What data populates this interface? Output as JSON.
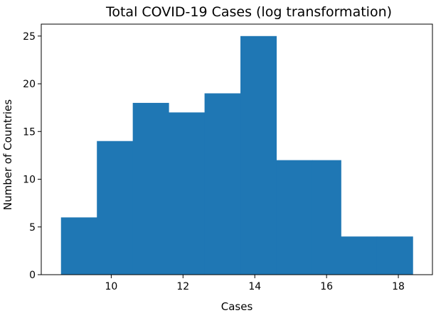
{
  "chart_data": {
    "type": "bar",
    "title": "Total COVID-19 Cases (log transformation)",
    "xlabel": "Cases",
    "ylabel": "Number of Countries",
    "bin_edges": [
      8.6,
      9.6,
      10.6,
      11.6,
      12.6,
      13.6,
      14.6,
      15.6,
      16.4,
      17.4,
      18.4
    ],
    "values": [
      6,
      14,
      18,
      17,
      19,
      25,
      12,
      12,
      4,
      4
    ],
    "xlim": [
      8.05,
      18.95
    ],
    "ylim": [
      0,
      26.25
    ],
    "x_ticks": [
      10,
      12,
      14,
      16,
      18
    ],
    "y_ticks": [
      0,
      5,
      10,
      15,
      20,
      25
    ],
    "x_tick_labels": [
      "10",
      "12",
      "14",
      "16",
      "18"
    ],
    "y_tick_labels": [
      "0",
      "5",
      "10",
      "15",
      "20",
      "25"
    ],
    "grid": false,
    "bar_color": "#1f77b4"
  }
}
